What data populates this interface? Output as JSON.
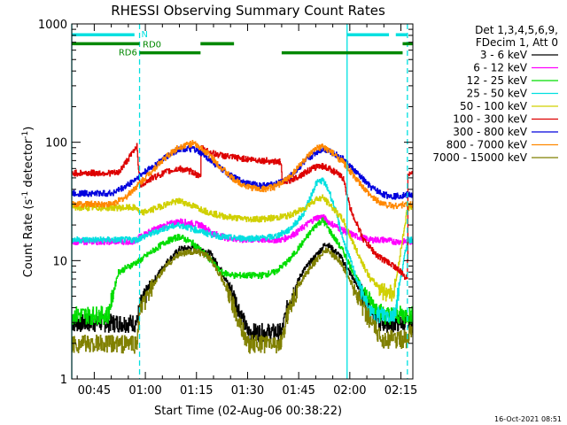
{
  "chart_data": {
    "type": "line",
    "title": "RHESSI Observing Summary Count Rates",
    "xlabel": "Start Time (02-Aug-06 00:38:22)",
    "ylabel_main": "Count Rate (s",
    "ylabel_exp1": "-1",
    "ylabel_mid": " detector",
    "ylabel_exp2": "-1",
    "ylabel_end": ")",
    "yscale": "log",
    "ylim": [
      1,
      1000
    ],
    "xlim_min": [
      38.4,
      138.5
    ],
    "x_unit": "minutes after 00:00 UT",
    "x_ticks": [
      {
        "m": 45,
        "label": "00:45"
      },
      {
        "m": 60,
        "label": "01:00"
      },
      {
        "m": 75,
        "label": "01:15"
      },
      {
        "m": 90,
        "label": "01:30"
      },
      {
        "m": 105,
        "label": "01:45"
      },
      {
        "m": 120,
        "label": "02:00"
      },
      {
        "m": 135,
        "label": "02:15"
      }
    ],
    "y_ticks": [
      {
        "v": 1,
        "label": "1"
      },
      {
        "v": 10,
        "label": "10"
      },
      {
        "v": 100,
        "label": "100"
      },
      {
        "v": 1000,
        "label": "1000"
      }
    ],
    "legend_header": [
      "Det 1,3,4,5,6,9,",
      "FDecim 1, Att 0"
    ],
    "legend_position": "right",
    "timestamp": "16-Oct-2021 08:51",
    "vlines": [
      {
        "m": 38.4,
        "color": "#00e0e0",
        "style": "solid"
      },
      {
        "m": 58.3,
        "color": "#00e0e0",
        "style": "dashed"
      },
      {
        "m": 119.2,
        "color": "#00e0e0",
        "style": "solid"
      },
      {
        "m": 136.9,
        "color": "#00e0e0",
        "style": "dashed"
      }
    ],
    "flags": [
      {
        "label": "N",
        "color": "#00e0e0",
        "y": 810,
        "segments": [
          [
            38.5,
            56.8
          ],
          [
            119.2,
            131.5
          ],
          [
            133.5,
            136.9
          ]
        ]
      },
      {
        "label": "RD0",
        "color": "#008800",
        "y": 680,
        "segments": [
          [
            38.5,
            58.3
          ],
          [
            86.0,
            76.2
          ],
          [
            76.2,
            86.0
          ],
          [
            135.5,
            138.5
          ]
        ]
      },
      {
        "label": "RD6",
        "color": "#008800",
        "y": 570,
        "segments": [
          [
            58.3,
            76.2
          ],
          [
            100.0,
            135.5
          ]
        ]
      }
    ],
    "series": [
      {
        "name": "3 - 6 keV",
        "color": "#000000",
        "x": [
          38.5,
          57.5,
          58.3,
          62,
          66,
          70,
          75,
          79,
          82,
          86,
          90,
          94,
          100,
          102,
          106,
          110,
          113,
          117,
          121,
          125,
          129,
          133,
          136.9,
          137.5,
          138.5
        ],
        "y": [
          3,
          3,
          4.2,
          6.5,
          9.5,
          12.5,
          13,
          11.5,
          8.5,
          5,
          2.5,
          2.5,
          2.5,
          4.5,
          8,
          11,
          14,
          11,
          7,
          4.5,
          3,
          3,
          3,
          3,
          3
        ]
      },
      {
        "name": "6 - 12 keV",
        "color": "#ff00ff",
        "x": [
          38.5,
          57.5,
          58.3,
          62,
          66,
          70,
          74,
          76.2,
          80,
          84,
          88,
          92,
          96,
          100,
          104,
          108,
          110,
          112,
          114,
          118,
          122,
          126,
          130,
          133,
          136.9,
          138.5
        ],
        "y": [
          14.5,
          14.5,
          16,
          18,
          20,
          21.5,
          20.5,
          20,
          17,
          15.5,
          15,
          15,
          15,
          15,
          17,
          21,
          23,
          23.5,
          21,
          18,
          16,
          15,
          15,
          14.5,
          14.5,
          14.5
        ]
      },
      {
        "name": "12 - 25 keV",
        "color": "#00dd00",
        "x": [
          38.5,
          49,
          52,
          58.3,
          62,
          66,
          70,
          74,
          78,
          82,
          86,
          90,
          94,
          98,
          102,
          106,
          110,
          112,
          114,
          118,
          122,
          126,
          130,
          133,
          136.9,
          138.5
        ],
        "y": [
          3.5,
          3.5,
          8,
          10,
          12,
          14.5,
          16,
          14,
          11,
          8,
          7.5,
          7.5,
          7.5,
          8,
          10,
          14,
          20,
          22,
          18,
          12,
          7,
          4.5,
          3.5,
          3.5,
          3.5,
          3.5
        ]
      },
      {
        "name": "25 - 50 keV",
        "color": "#00e0e0",
        "x": [
          38.5,
          57.5,
          58.3,
          62,
          66,
          70,
          74,
          78,
          82,
          86,
          90,
          94,
          98,
          102,
          106,
          108,
          110,
          112,
          114,
          116,
          118,
          122,
          126,
          130,
          133,
          136.9,
          138.5
        ],
        "y": [
          15,
          15,
          15.5,
          17,
          19,
          20,
          18.5,
          17,
          16,
          15.5,
          15.5,
          15.5,
          16,
          18,
          24,
          32,
          45,
          48,
          38,
          25,
          15,
          7,
          3.5,
          3.5,
          3.5,
          15,
          15
        ]
      },
      {
        "name": "50 - 100 keV",
        "color": "#d0d000",
        "x": [
          38.5,
          57.5,
          58.3,
          62,
          66,
          70,
          74,
          78,
          82,
          86,
          90,
          94,
          98,
          102,
          106,
          110,
          112,
          114,
          118,
          122,
          126,
          130,
          133,
          136.9,
          138.5
        ],
        "y": [
          28,
          28,
          25,
          27,
          30,
          32,
          29,
          26,
          24,
          23,
          22.5,
          22.5,
          23,
          24,
          27,
          33,
          34,
          30,
          22,
          12,
          7,
          5.5,
          5.5,
          28,
          28
        ]
      },
      {
        "name": "100 - 300 keV",
        "color": "#dd0000",
        "x": [
          38.5,
          52,
          56,
          57.5,
          58.3,
          62,
          66,
          70,
          74,
          76.2,
          76.3,
          80,
          85,
          90,
          95,
          99.9,
          100,
          104,
          108,
          111,
          114,
          116,
          118,
          120,
          124,
          128,
          133,
          136.9,
          137,
          138.5
        ],
        "y": [
          55,
          55,
          80,
          95,
          43,
          50,
          56,
          60,
          56,
          50,
          90,
          80,
          75,
          72,
          70,
          68,
          45,
          50,
          58,
          64,
          60,
          55,
          50,
          28,
          15,
          11,
          9,
          7,
          55,
          55
        ]
      },
      {
        "name": "300 - 800 keV",
        "color": "#0000dd",
        "x": [
          38.5,
          50,
          54,
          58.3,
          62,
          66,
          70,
          74,
          78,
          82,
          86,
          90,
          94,
          98,
          102,
          106,
          110,
          112,
          114,
          118,
          122,
          126,
          130,
          133,
          136.9,
          138.5
        ],
        "y": [
          37,
          37,
          42,
          52,
          62,
          75,
          88,
          88,
          75,
          60,
          50,
          45,
          43,
          44,
          50,
          65,
          82,
          88,
          85,
          72,
          55,
          42,
          36,
          35,
          36,
          36
        ]
      },
      {
        "name": "800 - 7000 keV",
        "color": "#ff8800",
        "x": [
          38.5,
          50,
          54,
          58.3,
          62,
          66,
          70,
          74,
          78,
          82,
          86,
          90,
          94,
          98,
          102,
          106,
          110,
          112,
          114,
          118,
          122,
          126,
          130,
          133,
          136.9,
          138.5
        ],
        "y": [
          30,
          30,
          34,
          45,
          58,
          75,
          92,
          98,
          82,
          62,
          48,
          42,
          40,
          42,
          50,
          68,
          88,
          92,
          85,
          68,
          48,
          35,
          30,
          29,
          30,
          30
        ]
      },
      {
        "name": "7000 - 15000 keV",
        "color": "#808000",
        "x": [
          38.5,
          57.5,
          58.3,
          62,
          66,
          70,
          75,
          79,
          82,
          86,
          90,
          94,
          100,
          102,
          106,
          110,
          113,
          117,
          121,
          125,
          129,
          133,
          136.9,
          137.5,
          138.5
        ],
        "y": [
          2,
          2,
          3.8,
          6,
          9,
          11.5,
          12,
          10.5,
          7.5,
          4,
          2,
          2,
          2,
          4,
          7,
          10,
          12.5,
          10,
          6,
          3.5,
          2.2,
          2.2,
          2.2,
          2.5,
          2.5
        ]
      }
    ]
  }
}
